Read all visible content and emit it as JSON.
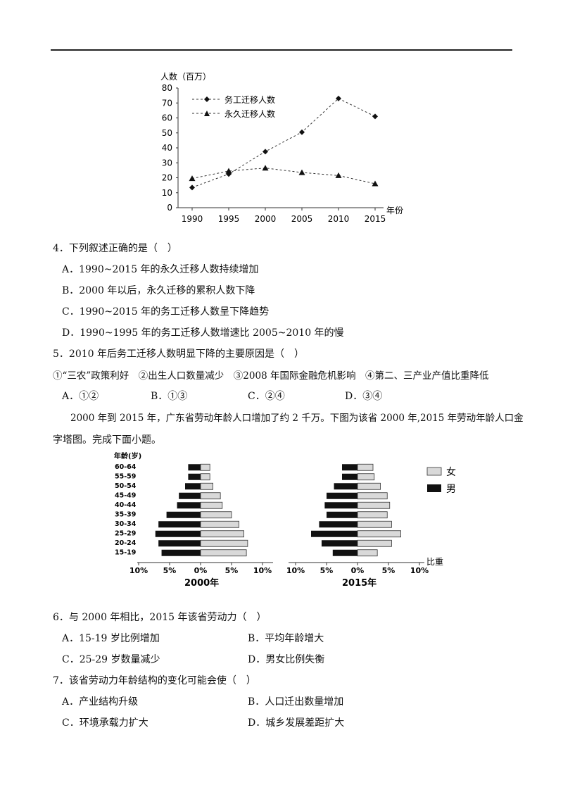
{
  "line_chart": {
    "ylabel": "人数（百万）",
    "xlabel": "年份",
    "y_ticks": [
      "80",
      "70",
      "60",
      "50",
      "40",
      "30",
      "20",
      "10",
      "0"
    ],
    "x_ticks": [
      "1990",
      "1995",
      "2000",
      "2005",
      "2010",
      "2015"
    ],
    "legend": [
      "务工迁移人数",
      "永久迁移人数"
    ]
  },
  "chart_data": [
    {
      "type": "line",
      "xlabel": "年份",
      "ylabel": "人数（百万）",
      "ylim": [
        0,
        80
      ],
      "x": [
        1990,
        1995,
        2000,
        2005,
        2010,
        2015
      ],
      "series": [
        {
          "name": "务工迁移人数",
          "marker": "diamond",
          "values": [
            13.5,
            22.5,
            37.5,
            50.5,
            73,
            61
          ]
        },
        {
          "name": "永久迁移人数",
          "marker": "triangle",
          "values": [
            19.5,
            24.5,
            26.5,
            23.5,
            21.5,
            16
          ]
        }
      ]
    },
    {
      "type": "bar",
      "orientation": "horizontal-pyramid",
      "title": "2000年",
      "categories": [
        "60-64",
        "55-59",
        "50-54",
        "45-49",
        "40-44",
        "35-39",
        "30-34",
        "25-29",
        "20-24",
        "15-19"
      ],
      "series": [
        {
          "name": "男",
          "values": [
            2.0,
            2.0,
            2.5,
            3.5,
            3.8,
            5.5,
            6.8,
            7.3,
            6.8,
            6.3
          ]
        },
        {
          "name": "女",
          "values": [
            1.5,
            1.5,
            2.0,
            3.2,
            3.5,
            5.0,
            6.2,
            7.0,
            7.6,
            7.4
          ]
        }
      ],
      "ylabel": "年龄(岁)",
      "xlabel": "比重",
      "x_ticks": [
        "10%",
        "5%",
        "0%",
        "5%",
        "10%"
      ]
    },
    {
      "type": "bar",
      "orientation": "horizontal-pyramid",
      "title": "2015年",
      "categories": [
        "60-64",
        "55-59",
        "50-54",
        "45-49",
        "40-44",
        "35-39",
        "30-34",
        "25-29",
        "20-24",
        "15-19"
      ],
      "series": [
        {
          "name": "男",
          "values": [
            2.5,
            2.5,
            3.8,
            5.0,
            5.3,
            5.0,
            6.2,
            7.5,
            5.8,
            4.0
          ]
        },
        {
          "name": "女",
          "values": [
            2.5,
            2.7,
            3.7,
            4.8,
            5.2,
            4.8,
            5.5,
            7.0,
            5.5,
            3.2
          ]
        }
      ],
      "ylabel": "",
      "xlabel": "比重",
      "x_ticks": [
        "10%",
        "5%",
        "0%",
        "5%",
        "10%"
      ]
    }
  ],
  "pyramid": {
    "age_header": "年龄(岁)",
    "ratio_label": "比重",
    "legend_female": "女",
    "legend_male": "男",
    "x_ticks": [
      "10%",
      "5%",
      "0%",
      "5%",
      "10%"
    ],
    "title_2000": "2000年",
    "title_2015": "2015年"
  },
  "colors": {
    "female": "#d9d9d9",
    "male": "#111111",
    "line": "#333333"
  },
  "questions": {
    "q4": {
      "stem": "4．下列叙述正确的是（　）",
      "A": "A．1990~2015 年的永久迁移人数持续增加",
      "B": "B．2000 年以后，永久迁移的累积人数下降",
      "C": "C．1990~2015 年的务工迁移人数呈下降趋势",
      "D": "D．1990~1995 年的务工迁移人数增速比 2005~2010 年的慢"
    },
    "q5": {
      "stem": "5．2010 年后务工迁移人数明显下降的主要原因是（　）",
      "options_line": "①“三农”政策利好　②出生人口数量减少　③2008 年国际金融危机影响　④第二、三产业产值比重降低",
      "A": "A．①②",
      "B": "B．①③",
      "C": "C．②④",
      "D": "D．③④"
    },
    "intro_line1": "2000 年到 2015 年，广东省劳动年龄人口增加了约 2 千万。下图为该省 2000 年,2015 年劳动年龄人口金",
    "intro_line2": "字塔图。完成下面小题。",
    "q6": {
      "stem": "6．与 2000 年相比，2015 年该省劳动力（　）",
      "A": "A．15-19 岁比例增加",
      "B": "B．平均年龄增大",
      "C": "C．25-29 岁数量减少",
      "D": "D．男女比例失衡"
    },
    "q7": {
      "stem": "7．该省劳动力年龄结构的变化可能会使（　）",
      "A": "A．产业结构升级",
      "B": "B．人口迁出数量增加",
      "C": "C．环境承载力扩大",
      "D": "D．城乡发展差距扩大"
    }
  }
}
